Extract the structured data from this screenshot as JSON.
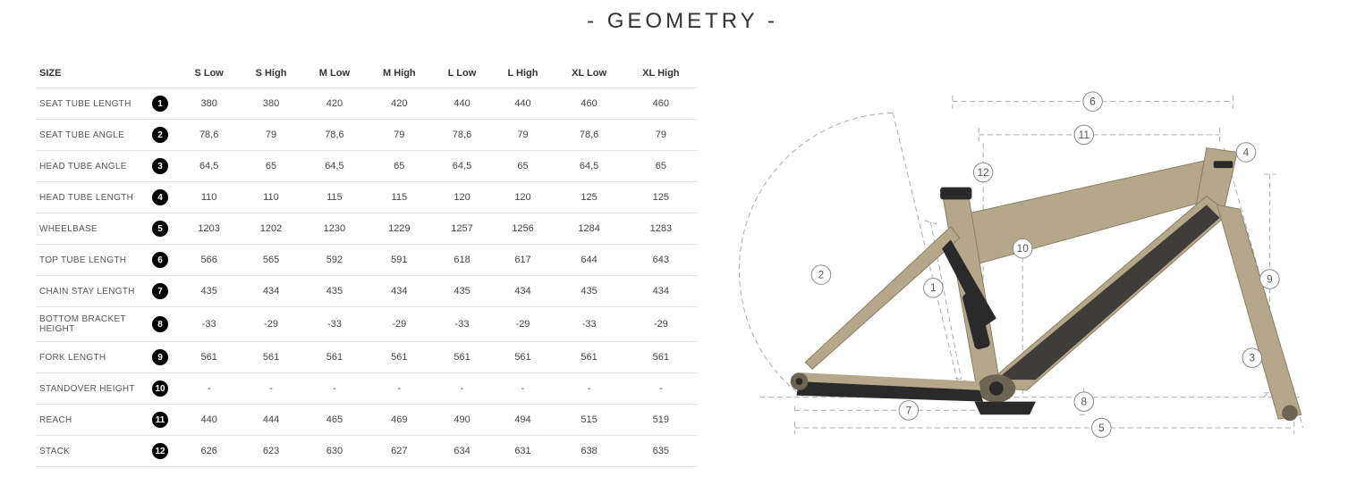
{
  "title": "- GEOMETRY -",
  "table": {
    "header_label": "SIZE",
    "columns": [
      "S Low",
      "S High",
      "M Low",
      "M High",
      "L Low",
      "L High",
      "XL Low",
      "XL High"
    ],
    "rows": [
      {
        "label": "SEAT TUBE LENGTH",
        "num": "1",
        "values": [
          "380",
          "380",
          "420",
          "420",
          "440",
          "440",
          "460",
          "460"
        ]
      },
      {
        "label": "SEAT TUBE ANGLE",
        "num": "2",
        "values": [
          "78,6",
          "79",
          "78,6",
          "79",
          "78,6",
          "79",
          "78,6",
          "79"
        ]
      },
      {
        "label": "HEAD TUBE ANGLE",
        "num": "3",
        "values": [
          "64,5",
          "65",
          "64,5",
          "65",
          "64,5",
          "65",
          "64,5",
          "65"
        ]
      },
      {
        "label": "HEAD TUBE LENGTH",
        "num": "4",
        "values": [
          "110",
          "110",
          "115",
          "115",
          "120",
          "120",
          "125",
          "125"
        ]
      },
      {
        "label": "WHEELBASE",
        "num": "5",
        "values": [
          "1203",
          "1202",
          "1230",
          "1229",
          "1257",
          "1256",
          "1284",
          "1283"
        ]
      },
      {
        "label": "TOP TUBE LENGTH",
        "num": "6",
        "values": [
          "566",
          "565",
          "592",
          "591",
          "618",
          "617",
          "644",
          "643"
        ]
      },
      {
        "label": "CHAIN STAY LENGTH",
        "num": "7",
        "values": [
          "435",
          "434",
          "435",
          "434",
          "435",
          "434",
          "435",
          "434"
        ]
      },
      {
        "label": "BOTTOM BRACKET HEIGHT",
        "num": "8",
        "values": [
          "-33",
          "-29",
          "-33",
          "-29",
          "-33",
          "-29",
          "-33",
          "-29"
        ]
      },
      {
        "label": "FORK LENGTH",
        "num": "9",
        "values": [
          "561",
          "561",
          "561",
          "561",
          "561",
          "561",
          "561",
          "561"
        ]
      },
      {
        "label": "STANDOVER HEIGHT",
        "num": "10",
        "values": [
          "-",
          "-",
          "-",
          "-",
          "-",
          "-",
          "-",
          "-"
        ]
      },
      {
        "label": "REACH",
        "num": "11",
        "values": [
          "440",
          "444",
          "465",
          "469",
          "490",
          "494",
          "515",
          "519"
        ]
      },
      {
        "label": "STACK",
        "num": "12",
        "values": [
          "626",
          "623",
          "630",
          "627",
          "634",
          "631",
          "638",
          "635"
        ]
      }
    ]
  },
  "diagram": {
    "frame_color": "#b5a78a",
    "frame_dark": "#8a7d63",
    "frame_black": "#2a2a2a",
    "line_color": "#888888",
    "dash_color": "#999999",
    "labels": [
      "1",
      "2",
      "3",
      "4",
      "5",
      "6",
      "7",
      "8",
      "9",
      "10",
      "11",
      "12"
    ]
  }
}
